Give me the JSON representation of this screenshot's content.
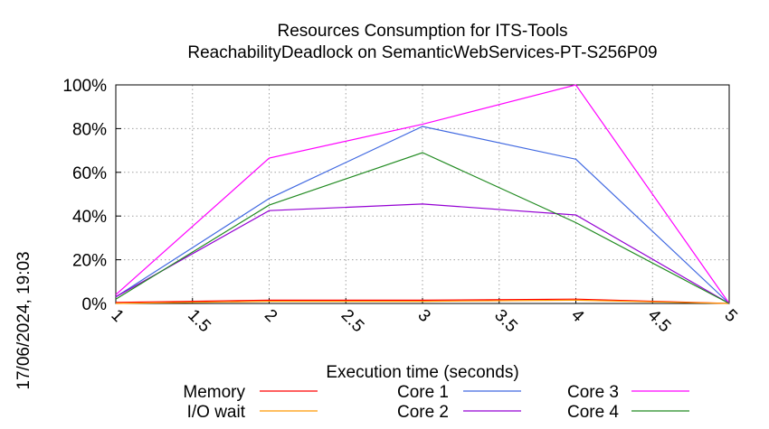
{
  "chart_data": {
    "type": "line",
    "title": [
      "Resources Consumption for ITS-Tools",
      "ReachabilityDeadlock on SemanticWebServices-PT-S256P09"
    ],
    "xlabel": "Execution time (seconds)",
    "ylabel": "",
    "xlim": [
      1,
      5
    ],
    "ylim": [
      0,
      100
    ],
    "x_ticks": [
      1,
      1.5,
      2,
      2.5,
      3,
      3.5,
      4,
      4.5,
      5
    ],
    "x_tick_labels": [
      "1",
      "1.5",
      "2",
      "2.5",
      "3",
      "3.5",
      "4",
      "4.5",
      "5"
    ],
    "y_ticks": [
      0,
      20,
      40,
      60,
      80,
      100
    ],
    "y_tick_labels": [
      "0%",
      "20%",
      "40%",
      "60%",
      "80%",
      "100%"
    ],
    "grid": true,
    "legend_position": "bottom",
    "timestamp": "17/06/2024, 19:03",
    "x": [
      1,
      2,
      3,
      4,
      5
    ],
    "series": [
      {
        "name": "Memory",
        "color": "#ff0000",
        "values": [
          0.5,
          1.5,
          1.5,
          2,
          0
        ]
      },
      {
        "name": "I/O wait",
        "color": "#ff9900",
        "values": [
          0,
          1,
          1,
          1.5,
          0
        ]
      },
      {
        "name": "Core 1",
        "color": "#4169e1",
        "values": [
          3,
          48,
          81,
          66,
          0
        ]
      },
      {
        "name": "Core 2",
        "color": "#9400d3",
        "values": [
          3,
          42.5,
          45.5,
          40.5,
          0
        ]
      },
      {
        "name": "Core 3",
        "color": "#ff00ff",
        "values": [
          4,
          66.5,
          82,
          100,
          0
        ]
      },
      {
        "name": "Core 4",
        "color": "#228b22",
        "values": [
          2,
          45,
          69,
          37,
          0
        ]
      }
    ]
  }
}
